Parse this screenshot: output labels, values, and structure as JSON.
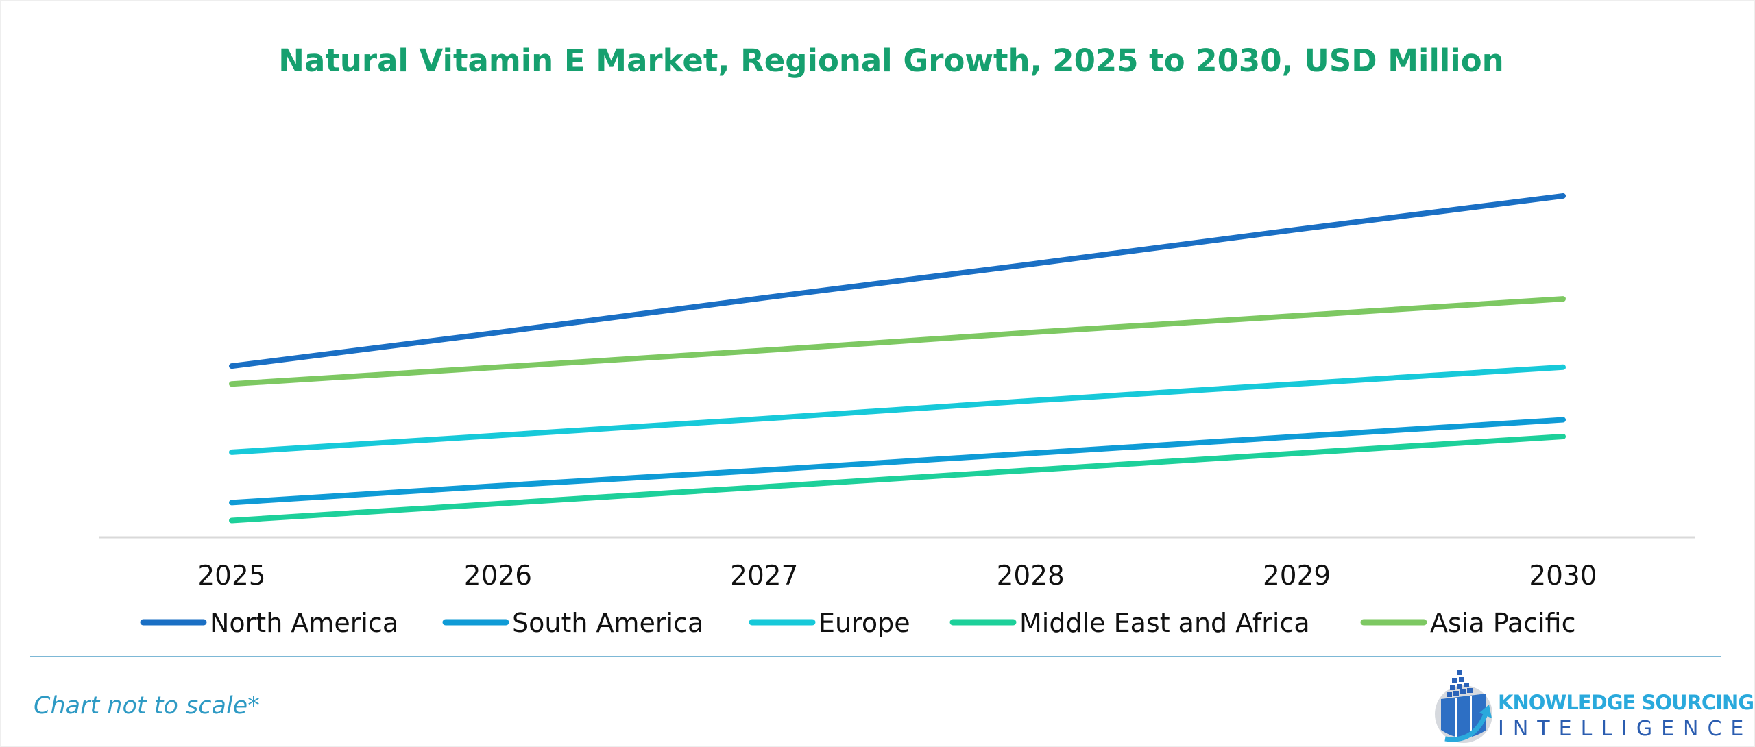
{
  "chart_data": {
    "type": "line",
    "title": "Natural Vitamin E Market, Regional Growth, 2025 to 2030, USD Million",
    "x": [
      "2025",
      "2026",
      "2027",
      "2028",
      "2029",
      "2030"
    ],
    "xlabel": "",
    "ylabel": "",
    "ylim": [
      0,
      330
    ],
    "y_axis_shown": false,
    "grid": false,
    "legend_position": "bottom",
    "note": "Chart not to scale*",
    "series": [
      {
        "name": "North America",
        "color": "#1a6fc4",
        "values": [
          153,
          183,
          214,
          244,
          275,
          305
        ]
      },
      {
        "name": "South America",
        "color": "#0f9bd6",
        "values": [
          31,
          46,
          60,
          75,
          90,
          105
        ]
      },
      {
        "name": "Europe",
        "color": "#17c9d9",
        "values": [
          76,
          91,
          106,
          122,
          137,
          152
        ]
      },
      {
        "name": "Middle East and Africa",
        "color": "#1dd09a",
        "values": [
          15,
          30,
          45,
          60,
          75,
          90
        ]
      },
      {
        "name": "Asia Pacific",
        "color": "#7dc862",
        "values": [
          137,
          152,
          167,
          183,
          198,
          213
        ]
      }
    ]
  },
  "logo": {
    "line1": "KNOWLEDGE SOURCING",
    "line2": "INTELLIGENCE"
  },
  "colors": {
    "title": "#16a06f",
    "note": "#2e9ac4",
    "separator": "#7db8d6"
  }
}
